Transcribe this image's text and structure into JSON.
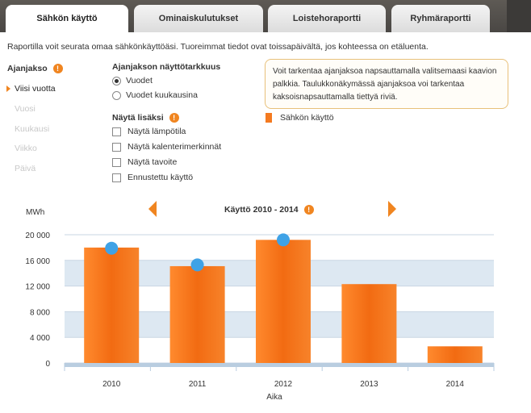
{
  "tabs": [
    {
      "label": "Sähkön käyttö",
      "active": true
    },
    {
      "label": "Ominaiskulutukset",
      "active": false
    },
    {
      "label": "Loistehoraportti",
      "active": false
    },
    {
      "label": "Ryhmäraportti",
      "active": false
    }
  ],
  "description": "Raportilla voit seurata omaa sähkönkäyttöäsi. Tuoreimmat tiedot ovat toissapäivältä, jos kohteessa on etäluenta.",
  "period": {
    "title": "Ajanjakso",
    "items": [
      {
        "label": "Viisi vuotta",
        "active": true
      },
      {
        "label": "Vuosi",
        "active": false
      },
      {
        "label": "Kuukausi",
        "active": false
      },
      {
        "label": "Viikko",
        "active": false
      },
      {
        "label": "Päivä",
        "active": false
      }
    ]
  },
  "accuracy": {
    "title": "Ajanjakson näyttötarkkuus",
    "options": [
      {
        "label": "Vuodet",
        "checked": true
      },
      {
        "label": "Vuodet kuukausina",
        "checked": false
      }
    ]
  },
  "extra": {
    "title": "Näytä lisäksi",
    "options": [
      {
        "label": "Näytä lämpötila",
        "checked": false
      },
      {
        "label": "Näytä kalenterimerkinnät",
        "checked": false
      },
      {
        "label": "Näytä tavoite",
        "checked": false
      },
      {
        "label": "Ennustettu käyttö",
        "checked": false
      }
    ]
  },
  "hint": "Voit tarkentaa ajanjaksoa napsauttamalla valitsemaasi kaavion palkkia. Taulukkonäkymässä ajanjaksoa voi tarkentaa kaksoisnapsauttamalla tiettyä riviä.",
  "legend": {
    "label": "Sähkön käyttö",
    "color": "#f47a20"
  },
  "colors": {
    "accent": "#f08520",
    "bar": "#f47a20",
    "marker": "#3fa2e6",
    "band": "#dde8f2"
  },
  "chart_data": {
    "type": "bar",
    "title": "Käyttö 2010 - 2014",
    "ylabel": "MWh",
    "xlabel": "Aika",
    "categories": [
      "2010",
      "2011",
      "2012",
      "2013",
      "2014"
    ],
    "series": [
      {
        "name": "Sähkön käyttö",
        "values": [
          18000,
          15100,
          19200,
          12300,
          2600
        ]
      }
    ],
    "markers": [
      17900,
      15300,
      19200,
      null,
      null
    ],
    "ylim": [
      0,
      20000
    ],
    "yticks": [
      0,
      4000,
      8000,
      12000,
      16000,
      20000
    ],
    "ytick_labels": [
      "0",
      "4 000",
      "8 000",
      "12 000",
      "16 000",
      "20 000"
    ],
    "grid": true
  }
}
